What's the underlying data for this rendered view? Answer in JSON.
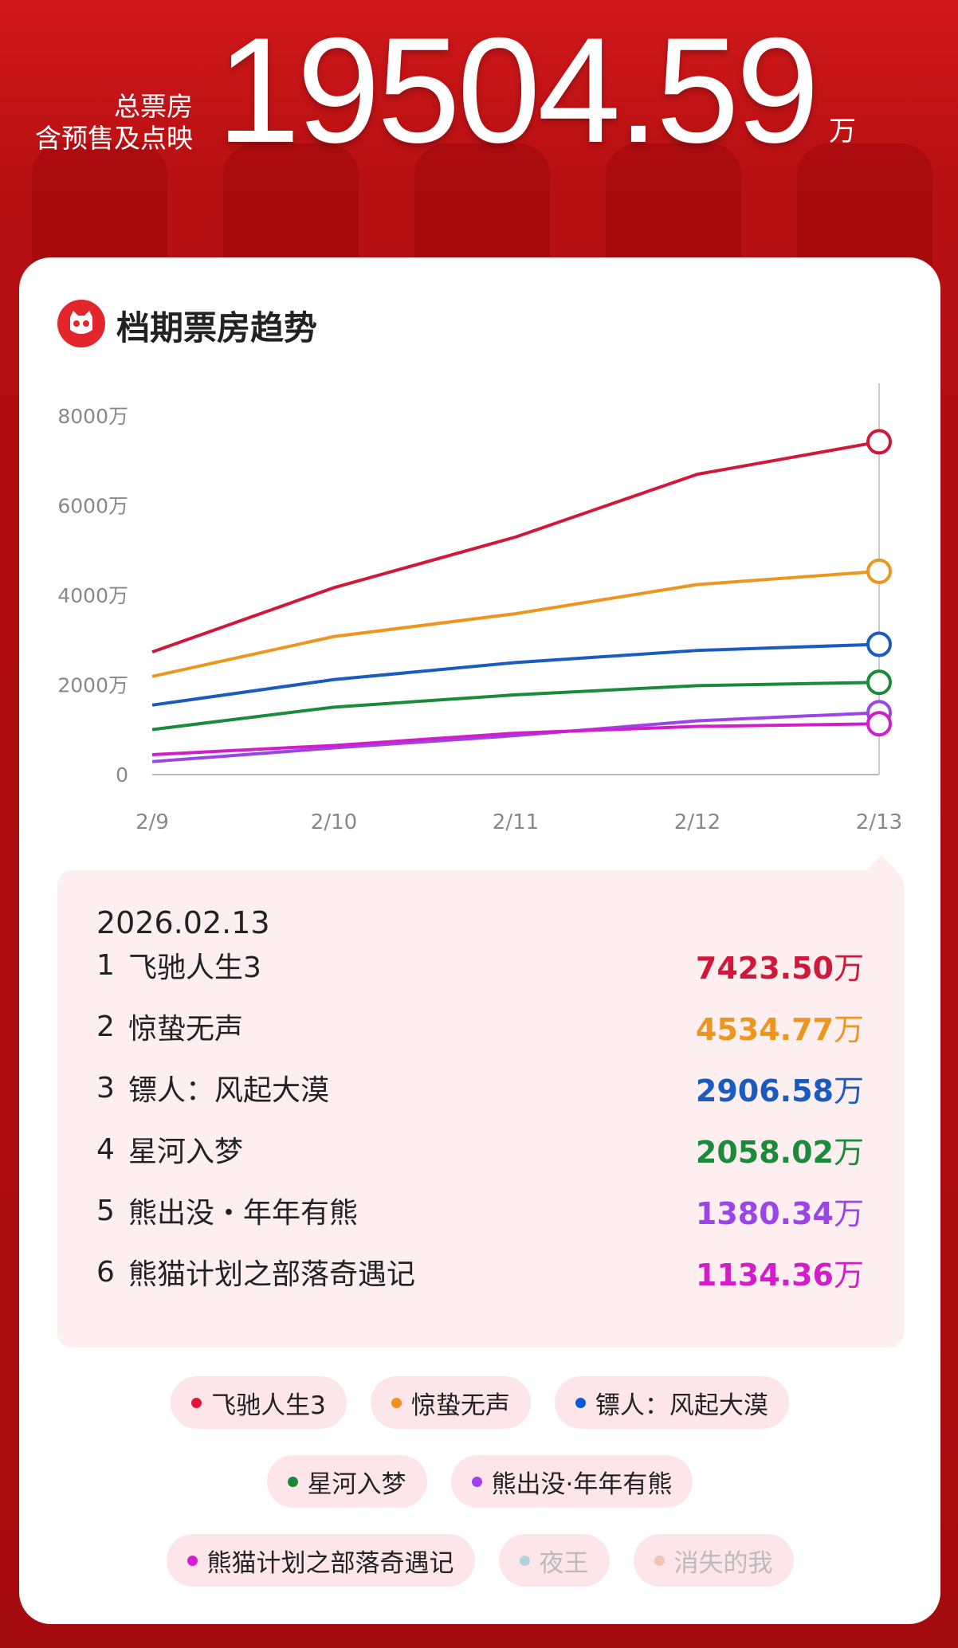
{
  "header": {
    "label_line1": "总票房",
    "label_line2": "含预售及点映",
    "total": "19504.59",
    "unit": "万"
  },
  "card": {
    "title": "档期票房趋势",
    "logo": "cat-eye-logo"
  },
  "chart_data": {
    "type": "line",
    "title": "档期票房趋势",
    "x": [
      "2/9",
      "2/10",
      "2/11",
      "2/12",
      "2/13"
    ],
    "yticks": [
      "0",
      "2000万",
      "4000万",
      "6000万",
      "8000万"
    ],
    "ylim": [
      0,
      8000
    ],
    "unit": "万",
    "grid": false,
    "series": [
      {
        "name": "飞驰人生3",
        "color": "#d0183a",
        "values": [
          2735,
          4170,
          5300,
          6700,
          7423.5
        ]
      },
      {
        "name": "惊蛰无声",
        "color": "#ec9620",
        "values": [
          2190,
          3080,
          3590,
          4240,
          4534.77
        ]
      },
      {
        "name": "镖人：风起大漠",
        "color": "#1a5bbf",
        "values": [
          1550,
          2120,
          2500,
          2770,
          2906.58
        ]
      },
      {
        "name": "星河入梦",
        "color": "#1b8a3a",
        "values": [
          1005,
          1505,
          1780,
          1985,
          2058.02
        ]
      },
      {
        "name": "熊出没·年年有熊",
        "color": "#9a45e6",
        "values": [
          290,
          595,
          870,
          1200,
          1380.34
        ]
      },
      {
        "name": "熊猫计划之部落奇遇记",
        "color": "#d21ec8",
        "values": [
          445,
          650,
          925,
          1075,
          1134.36
        ]
      }
    ]
  },
  "tooltip": {
    "date": "2026.02.13",
    "rows": [
      {
        "rank": "1",
        "name": "飞驰人生3",
        "value": "7423.50",
        "unit": "万",
        "color": "#d0183a"
      },
      {
        "rank": "2",
        "name": "惊蛰无声",
        "value": "4534.77",
        "unit": "万",
        "color": "#ec9620"
      },
      {
        "rank": "3",
        "name": "镖人：风起大漠",
        "value": "2906.58",
        "unit": "万",
        "color": "#1a5bbf"
      },
      {
        "rank": "4",
        "name": "星河入梦",
        "value": "2058.02",
        "unit": "万",
        "color": "#1b8a3a"
      },
      {
        "rank": "5",
        "name": "熊出没・年年有熊",
        "value": "1380.34",
        "unit": "万",
        "color": "#9a45e6"
      },
      {
        "rank": "6",
        "name": "熊猫计划之部落奇遇记",
        "value": "1134.36",
        "unit": "万",
        "color": "#d21ec8"
      }
    ]
  },
  "legend": [
    {
      "label": "飞驰人生3",
      "color": "#e0163a",
      "active": true
    },
    {
      "label": "惊蛰无声",
      "color": "#f09020",
      "active": true
    },
    {
      "label": "镖人：风起大漠",
      "color": "#1558d6",
      "active": true
    },
    {
      "label": "星河入梦",
      "color": "#168a3a",
      "active": true
    },
    {
      "label": "熊出没·年年有熊",
      "color": "#a040f0",
      "active": true
    },
    {
      "label": "熊猫计划之部落奇遇记",
      "color": "#d81ed0",
      "active": true
    },
    {
      "label": "夜王",
      "color": "#b5d2da",
      "active": false
    },
    {
      "label": "消失的我",
      "color": "#f0c4b4",
      "active": false
    }
  ]
}
